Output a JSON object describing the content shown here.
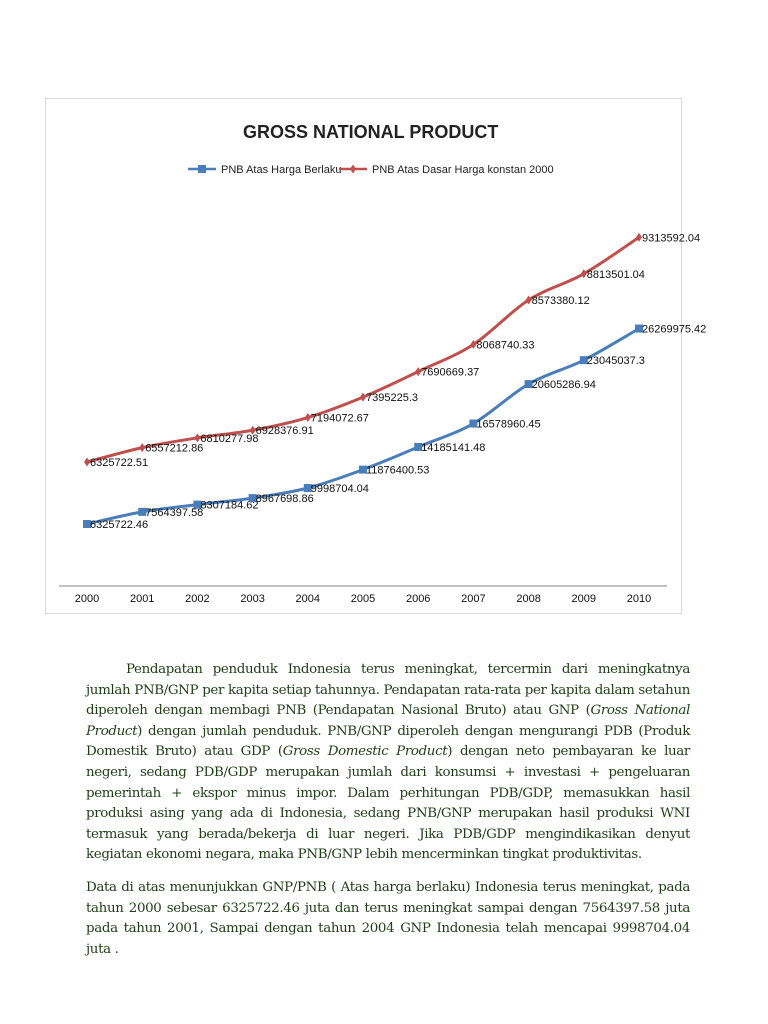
{
  "chart_data": {
    "type": "line",
    "stacked": true,
    "title": "GROSS NATIONAL PRODUCT",
    "categories": [
      "2000",
      "2001",
      "2002",
      "2003",
      "2004",
      "2005",
      "2006",
      "2007",
      "2008",
      "2009",
      "2010"
    ],
    "ylim": [
      0,
      40000000
    ],
    "y_axis_visible": false,
    "grid": false,
    "legend_position": "top",
    "series": [
      {
        "name": "PNB Atas Harga Berlaku",
        "color": "#4a7ebb",
        "marker": "square",
        "values": [
          6325722.46,
          7564397.58,
          8307184.62,
          8967698.86,
          9998704.04,
          11876400.53,
          14185141.48,
          16578960.45,
          20605286.94,
          23045037.3,
          26269975.42
        ],
        "labels": [
          "6325722.46",
          "7564397.58",
          "8307184.62",
          "8967698.86",
          "9998704.04",
          "11876400.53",
          "14185141.48",
          "16578960.45",
          "20605286.94",
          "23045037.3",
          "26269975.42"
        ]
      },
      {
        "name": "PNB Atas Dasar Harga konstan 2000",
        "color": "#c0504d",
        "marker": "diamond",
        "values": [
          6325722.51,
          6557212.86,
          6810277.98,
          6928376.91,
          7194072.67,
          7395225.3,
          7690669.37,
          8068740.33,
          8573380.12,
          8813501.04,
          9313592.04
        ],
        "labels": [
          "6325722.51",
          "6557212.86",
          "6810277.98",
          "6928376.91",
          "7194072.67",
          "7395225.3",
          "7690669.37",
          "8068740.33",
          "8573380.12",
          "8813501.04",
          "9313592.04"
        ]
      }
    ]
  },
  "text": {
    "p1": "Pendapatan penduduk Indonesia terus meningkat, tercermin dari meningkatnya jumlah PNB/GNP per kapita setiap tahunnya. Pendapatan rata-rata per kapita dalam setahun diperoleh dengan membagi PNB (Pendapatan Nasional Bruto) atau GNP (",
    "p1_i1": "Gross National Product",
    "p1_b": ") dengan jumlah penduduk. PNB/GNP diperoleh dengan mengurangi PDB (Produk Domestik Bruto) atau GDP (",
    "p1_i2": "Gross Domestic Product",
    "p1_c": ") dengan neto pembayaran ke luar negeri, sedang PDB/GDP merupakan jumlah dari konsumsi + investasi + pengeluaran pemerintah + ekspor minus impor. Dalam perhitungan PDB/GDP, memasukkan hasil produksi asing yang ada di Indonesia, sedang PNB/GNP merupakan hasil produksi WNI termasuk yang berada/bekerja di luar negeri. Jika PDB/GDP mengindikasikan denyut kegiatan ekonomi negara, maka PNB/GNP lebih mencerminkan tingkat produktivitas.",
    "p2": "Data di atas menunjukkan GNP/PNB ( Atas harga berlaku) Indonesia terus meningkat, pada tahun 2000 sebesar 6325722.46 juta dan terus meningkat sampai dengan 7564397.58 juta pada tahun 2001, Sampai dengan tahun 2004 GNP Indonesia telah mencapai 9998704.04 juta ."
  }
}
